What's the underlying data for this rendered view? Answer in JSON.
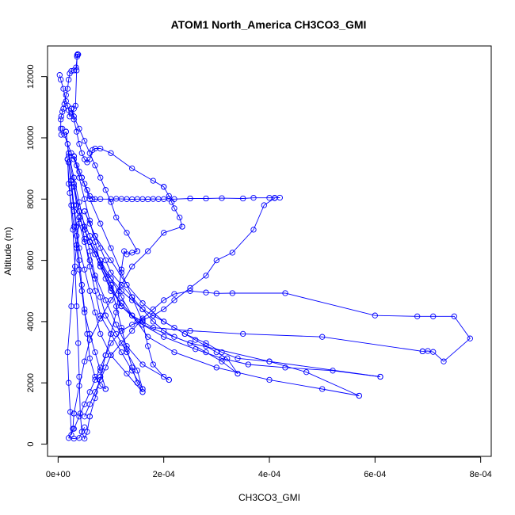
{
  "chart_data": {
    "type": "scatter",
    "title": "ATOM1 North_America CH3CO3_GMI",
    "xlabel": "CH3CO3_GMI",
    "ylabel": "Altitude (m)",
    "xlim": [
      -2e-05,
      0.00082
    ],
    "ylim": [
      -400,
      13000
    ],
    "x_ticks": [
      0,
      0.0002,
      0.0004,
      0.0006,
      0.0008
    ],
    "x_tick_labels": [
      "0e+00",
      "2e-04",
      "4e-04",
      "6e-04",
      "8e-04"
    ],
    "y_ticks": [
      0,
      2000,
      4000,
      6000,
      8000,
      10000,
      12000
    ],
    "y_tick_labels": [
      "0",
      "2000",
      "4000",
      "6000",
      "8000",
      "10000",
      "12000"
    ],
    "colors": {
      "series": "#0000ff",
      "axis": "#000000"
    },
    "marker": "open-circle",
    "connected": true,
    "series": [
      {
        "x": [
          3e-06,
          5e-06,
          1e-05,
          1.5e-05,
          1.8e-05,
          2e-05,
          2.2e-05,
          2.5e-05,
          3e-05,
          3.3e-05,
          3.5e-05,
          3.6e-05,
          3.7e-05,
          3.8e-05,
          3.6e-05,
          3.4e-05,
          3e-05,
          2.5e-05,
          2.2e-05,
          2e-05,
          1.8e-05,
          1.5e-05,
          1.2e-05,
          1e-05,
          8e-06,
          6e-06,
          5e-06,
          5e-06,
          6e-06
        ],
        "y": [
          12050,
          11900,
          11600,
          11200,
          11050,
          10900,
          10700,
          10800,
          10950,
          11050,
          12200,
          12700,
          12730,
          12720,
          12650,
          12300,
          12200,
          12180,
          12100,
          11900,
          11600,
          11400,
          11100,
          10950,
          10850,
          10700,
          10600,
          10300,
          10100
        ]
      },
      {
        "x": [
          8e-06,
          1.2e-05,
          1.8e-05,
          2.5e-05,
          3e-05,
          3.5e-05,
          4e-05,
          4.5e-05,
          5e-05,
          5.5e-05,
          6e-05,
          6.5e-05,
          7e-05,
          8e-05,
          0.0001,
          0.00011,
          0.00012,
          0.00013,
          0.00014,
          0.00015,
          0.00016,
          0.00017,
          0.00018,
          0.00019,
          0.0002,
          0.00021,
          0.00022,
          0.00025,
          0.00028,
          0.00031,
          0.00035,
          0.00037,
          0.0004,
          0.00041,
          0.00042
        ],
        "y": [
          10300,
          10100,
          9800,
          9500,
          9300,
          9100,
          8900,
          8700,
          8500,
          8300,
          8100,
          8000,
          8000,
          8000,
          8000,
          8010,
          8005,
          8000,
          7995,
          8000,
          8000,
          7995,
          8005,
          8000,
          8000,
          8010,
          8000,
          8020,
          8020,
          8030,
          8020,
          8040,
          8040,
          8040,
          8045
        ]
      },
      {
        "x": [
          0.00041,
          0.00039,
          0.00037,
          0.00033,
          0.0003,
          0.00028,
          0.00025,
          0.00022,
          0.0002,
          0.00018,
          0.00016,
          0.00014,
          0.00012
        ],
        "y": [
          8030,
          7800,
          7000,
          6250,
          6000,
          5500,
          5100,
          4700,
          4400,
          4200,
          4050,
          3900,
          3700
        ]
      },
      {
        "x": [
          0.00012,
          0.0001,
          9e-05,
          8e-05,
          7e-05,
          6e-05,
          5e-05,
          4e-05,
          3e-05,
          2e-05,
          3e-05,
          4e-05,
          5e-05
        ],
        "y": [
          3700,
          3300,
          2900,
          2500,
          2100,
          1700,
          1300,
          900,
          500,
          200,
          180,
          200,
          550
        ]
      },
      {
        "x": [
          5e-05,
          6e-05,
          7e-05,
          8e-05,
          9e-05,
          0.0001,
          0.00012,
          0.00014,
          0.00016,
          0.00018,
          0.0002,
          0.00022,
          0.00025,
          0.00028,
          0.0003,
          0.00033,
          0.00043,
          0.0006,
          0.00068,
          0.00071,
          0.00075,
          0.00078,
          0.00073,
          0.00071,
          0.0007,
          0.00069
        ],
        "y": [
          900,
          1300,
          1700,
          2100,
          2500,
          2900,
          3300,
          3700,
          4100,
          4400,
          4700,
          4900,
          5000,
          4950,
          4920,
          4930,
          4930,
          4200,
          4170,
          4170,
          4170,
          3450,
          2700,
          3010,
          3040,
          3030
        ]
      },
      {
        "x": [
          0.00069,
          0.0005,
          0.00035,
          0.00025,
          0.00018,
          0.00014,
          0.00012,
          0.0001,
          9e-05,
          8e-05,
          7e-05,
          6e-05,
          5e-05,
          4e-05
        ],
        "y": [
          3030,
          3500,
          3600,
          3700,
          3800,
          4200,
          4600,
          5000,
          5400,
          5800,
          6200,
          6600,
          7000,
          7400
        ]
      },
      {
        "x": [
          4e-05,
          5e-05,
          6e-05,
          7e-05,
          8e-05,
          0.0001,
          0.00012,
          0.00014,
          0.00016,
          0.00018,
          0.0002,
          0.00022,
          0.00024,
          0.00026,
          0.00028,
          0.0003,
          0.00032,
          0.00034
        ],
        "y": [
          7400,
          7000,
          6600,
          6200,
          5800,
          5400,
          5000,
          4700,
          4400,
          4200,
          4000,
          3800,
          3600,
          3400,
          3200,
          3000,
          2800,
          2300
        ]
      },
      {
        "x": [
          0.00034,
          0.00031,
          0.00028,
          0.00025,
          0.00022,
          0.0002,
          0.00018,
          0.00016,
          0.00014,
          0.00012,
          0.0001,
          9e-05,
          8e-05,
          7e-05,
          6e-05,
          5e-05
        ],
        "y": [
          2300,
          2700,
          3000,
          3300,
          3500,
          3700,
          4000,
          4400,
          4800,
          5200,
          5600,
          6000,
          6400,
          6800,
          7200,
          7600
        ]
      },
      {
        "x": [
          5e-05,
          7e-05,
          0.0001,
          0.00013,
          0.00016,
          0.0002,
          0.00024,
          0.00028,
          0.00031,
          0.00034,
          0.0004,
          0.00047,
          0.00057
        ],
        "y": [
          7600,
          6800,
          6000,
          5200,
          4600,
          4000,
          3600,
          3300,
          3000,
          2800,
          2700,
          2350,
          1580
        ]
      },
      {
        "x": [
          0.00057,
          0.0005,
          0.0004,
          0.0003,
          0.00022,
          0.00017,
          0.00014,
          0.00012,
          0.0001,
          8e-05,
          6e-05
        ],
        "y": [
          1580,
          1800,
          2100,
          2500,
          3000,
          3500,
          4200,
          4800,
          5400,
          6000,
          6600
        ]
      },
      {
        "x": [
          6e-05,
          8e-05,
          0.0001,
          0.00012,
          0.00015,
          0.0002,
          0.00026,
          0.00031,
          0.00036,
          0.00043,
          0.00052,
          0.00061
        ],
        "y": [
          6600,
          5800,
          5100,
          4500,
          4000,
          3500,
          3100,
          2800,
          2600,
          2500,
          2400,
          2200
        ]
      },
      {
        "x": [
          0.00061,
          0.0004,
          0.00025,
          0.00016,
          0.00012,
          0.0001,
          8e-05,
          7e-05,
          6e-05,
          5e-05,
          4e-05,
          3e-05
        ],
        "y": [
          2200,
          2700,
          3300,
          3900,
          4500,
          5200,
          5900,
          6600,
          7300,
          8000,
          8700,
          9400
        ]
      },
      {
        "x": [
          3e-05,
          4.5e-05,
          6e-05,
          8e-05,
          0.0001,
          0.00012,
          0.00014,
          0.00016,
          0.00017,
          0.00018,
          0.0002,
          0.00021
        ],
        "y": [
          9400,
          8700,
          8000,
          7200,
          6400,
          5600,
          4800,
          4000,
          3200,
          2600,
          2200,
          2100
        ]
      },
      {
        "x": [
          0.00021,
          0.00016,
          0.00013,
          0.00011,
          9e-05,
          7e-05,
          6e-05,
          5e-05,
          4e-05,
          3e-05,
          2e-05,
          1.5e-05
        ],
        "y": [
          2100,
          2600,
          3200,
          3900,
          4700,
          5500,
          6300,
          7100,
          7900,
          8700,
          9500,
          10200
        ]
      },
      {
        "x": [
          1.5e-05,
          2e-05,
          3e-05,
          4e-05,
          5e-05,
          6e-05,
          7e-05,
          8e-05,
          0.0001,
          0.00012,
          0.00014,
          0.00016
        ],
        "y": [
          10200,
          9400,
          8500,
          7600,
          6700,
          5800,
          5000,
          4200,
          3600,
          3000,
          2400,
          1800
        ]
      },
      {
        "x": [
          0.00016,
          0.00015,
          0.00013,
          0.00011,
          9e-05,
          8e-05,
          7e-05,
          6e-05,
          5e-05,
          4e-05,
          3.5e-05,
          3e-05
        ],
        "y": [
          1800,
          2400,
          3000,
          3600,
          4200,
          4800,
          5400,
          6000,
          6600,
          7200,
          7800,
          8400
        ]
      },
      {
        "x": [
          3e-05,
          4e-05,
          6e-05,
          8e-05,
          0.0001,
          0.00011,
          0.00012,
          0.00013,
          0.00014,
          0.00015,
          0.00016
        ],
        "y": [
          8400,
          7600,
          6800,
          6000,
          5200,
          4500,
          3800,
          3100,
          2500,
          2000,
          1700
        ]
      },
      {
        "x": [
          0.00016,
          0.00013,
          0.0001,
          8e-05,
          7e-05,
          6e-05,
          5e-05,
          4e-05,
          3.5e-05,
          3e-05,
          2.5e-05,
          2e-05
        ],
        "y": [
          1700,
          2300,
          2900,
          3600,
          4300,
          5000,
          5700,
          6400,
          7100,
          7800,
          8600,
          9200
        ]
      },
      {
        "x": [
          2e-05,
          2.5e-05,
          3e-05,
          3.5e-05,
          4e-05,
          4.5e-05,
          5e-05,
          5.5e-05,
          6e-05,
          7e-05,
          8e-05,
          9e-05
        ],
        "y": [
          9200,
          8400,
          7600,
          6800,
          6000,
          5200,
          4400,
          3600,
          2800,
          2200,
          1900,
          1800
        ]
      },
      {
        "x": [
          9e-05,
          8e-05,
          7e-05,
          6e-05,
          5e-05,
          4.5e-05,
          4e-05,
          3.5e-05,
          3e-05,
          2.5e-05,
          2e-05,
          1.8e-05
        ],
        "y": [
          1800,
          2400,
          3000,
          3600,
          4300,
          5000,
          5700,
          6400,
          7100,
          7800,
          8500,
          9300
        ]
      },
      {
        "x": [
          1.8e-05,
          2.2e-05,
          2.8e-05,
          3.2e-05,
          3.5e-05,
          3.8e-05,
          4e-05,
          4.2e-05,
          4.5e-05,
          5e-05,
          5.5e-05,
          6e-05
        ],
        "y": [
          9300,
          8200,
          7000,
          5800,
          4500,
          3300,
          2200,
          1000,
          400,
          180,
          400,
          900
        ]
      },
      {
        "x": [
          6e-05,
          7e-05,
          8e-05,
          9e-05,
          0.0001,
          0.00011,
          0.000115,
          0.00012,
          0.000125,
          0.00013,
          0.00014,
          0.00015
        ],
        "y": [
          900,
          1500,
          2200,
          2900,
          3600,
          4300,
          5000,
          5700,
          6300,
          6200,
          6250,
          6300
        ]
      },
      {
        "x": [
          0.00015,
          0.00013,
          0.00011,
          0.0001,
          9e-05,
          8e-05,
          7e-05,
          6e-05,
          5e-05,
          4e-05,
          3e-05,
          2.5e-05
        ],
        "y": [
          6300,
          6900,
          7400,
          7900,
          8300,
          8700,
          9100,
          9500,
          9900,
          10300,
          10700,
          10950
        ]
      },
      {
        "x": [
          2.5e-05,
          3e-05,
          3.5e-05,
          4e-05,
          4.5e-05,
          5e-05,
          5.5e-05,
          6e-05,
          6.5e-05,
          7e-05,
          8e-05,
          0.0001,
          0.00014,
          0.00018,
          0.0002
        ],
        "y": [
          10950,
          10600,
          10200,
          9800,
          9500,
          9300,
          9200,
          9300,
          9600,
          9650,
          9650,
          9500,
          9000,
          8600,
          8400
        ]
      },
      {
        "x": [
          0.0002,
          0.00021,
          0.000215,
          0.00022,
          0.00023,
          0.000235
        ],
        "y": [
          8400,
          8100,
          7900,
          7700,
          7400,
          7100
        ]
      },
      {
        "x": [
          0.000235,
          0.0002,
          0.00017,
          0.00014,
          0.00012,
          0.0001,
          8e-05,
          6e-05,
          5e-05,
          4e-05,
          3e-05
        ],
        "y": [
          7100,
          6900,
          6300,
          5800,
          5200,
          4700,
          4100,
          3400,
          2700,
          1900,
          1000
        ]
      },
      {
        "x": [
          3e-05,
          2.8e-05,
          2.5e-05,
          2.3e-05,
          2e-05,
          1.8e-05,
          2.5e-05,
          3e-05,
          3.5e-05,
          4e-05
        ],
        "y": [
          1000,
          500,
          300,
          1050,
          2000,
          3000,
          4500,
          5600,
          6500,
          7400
        ]
      }
    ]
  }
}
